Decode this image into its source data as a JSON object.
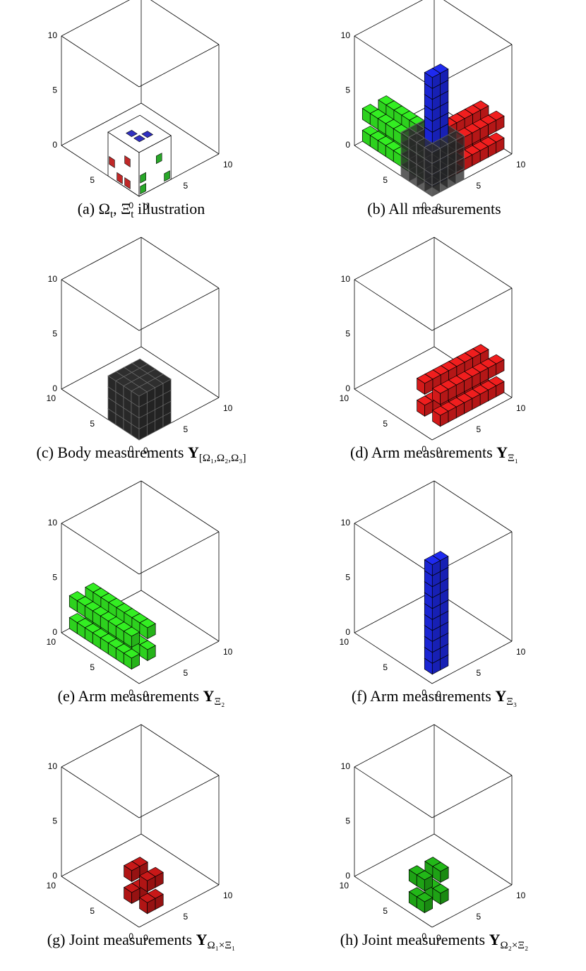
{
  "panels": [
    {
      "caption": [
        {
          "t": "(a) Ω"
        },
        {
          "t": "t",
          "sub": true
        },
        {
          "t": ", Ξ"
        },
        {
          "t": "t",
          "sub": true
        },
        {
          "t": " illustration"
        }
      ],
      "zticks": [
        10,
        5,
        0
      ],
      "yticks": [
        5,
        0
      ],
      "xticks": [
        0,
        5,
        10
      ]
    },
    {
      "caption": [
        {
          "t": "(b) All measurements"
        }
      ],
      "zticks": [
        10,
        5,
        0
      ],
      "yticks": [
        5,
        0
      ],
      "xticks": [
        0,
        5,
        10
      ]
    },
    {
      "caption": [
        {
          "t": "(c) Body measurements "
        },
        {
          "t": "Y",
          "bold": true
        },
        {
          "t": "[Ω₁,Ω₂,Ω₃]",
          "sub": true
        }
      ],
      "zticks": [
        10,
        5,
        0
      ],
      "yticks": [
        10,
        5,
        0
      ],
      "xticks": [
        0,
        5,
        10
      ]
    },
    {
      "caption": [
        {
          "t": "(d) Arm measurements "
        },
        {
          "t": "Y",
          "bold": true
        },
        {
          "t": "Ξ₁",
          "sub": true
        }
      ],
      "zticks": [
        10,
        5,
        0
      ],
      "yticks": [
        10,
        5,
        0
      ],
      "xticks": [
        0,
        5,
        10
      ]
    },
    {
      "caption": [
        {
          "t": "(e) Arm measurements "
        },
        {
          "t": "Y",
          "bold": true
        },
        {
          "t": "Ξ₂",
          "sub": true
        }
      ],
      "zticks": [
        10,
        5,
        0
      ],
      "yticks": [
        10,
        5,
        0
      ],
      "xticks": [
        0,
        5,
        10
      ]
    },
    {
      "caption": [
        {
          "t": "(f) Arm measurements "
        },
        {
          "t": "Y",
          "bold": true
        },
        {
          "t": "Ξ₃",
          "sub": true
        }
      ],
      "zticks": [
        10,
        5,
        0
      ],
      "yticks": [
        10,
        5,
        0
      ],
      "xticks": [
        0,
        5,
        10
      ]
    },
    {
      "caption": [
        {
          "t": "(g) Joint measurements "
        },
        {
          "t": "Y",
          "bold": true
        },
        {
          "t": "Ω₁×Ξ₁",
          "sub": true
        }
      ],
      "zticks": [
        10,
        5,
        0
      ],
      "yticks": [
        10,
        5,
        0
      ],
      "xticks": [
        0,
        5,
        10
      ]
    },
    {
      "caption": [
        {
          "t": "(h) Joint measurements "
        },
        {
          "t": "Y",
          "bold": true
        },
        {
          "t": "Ω₂×Ξ₂",
          "sub": true
        }
      ],
      "zticks": [
        10,
        5,
        0
      ],
      "yticks": [
        10,
        5,
        0
      ],
      "xticks": [
        0,
        5,
        10
      ]
    }
  ]
}
